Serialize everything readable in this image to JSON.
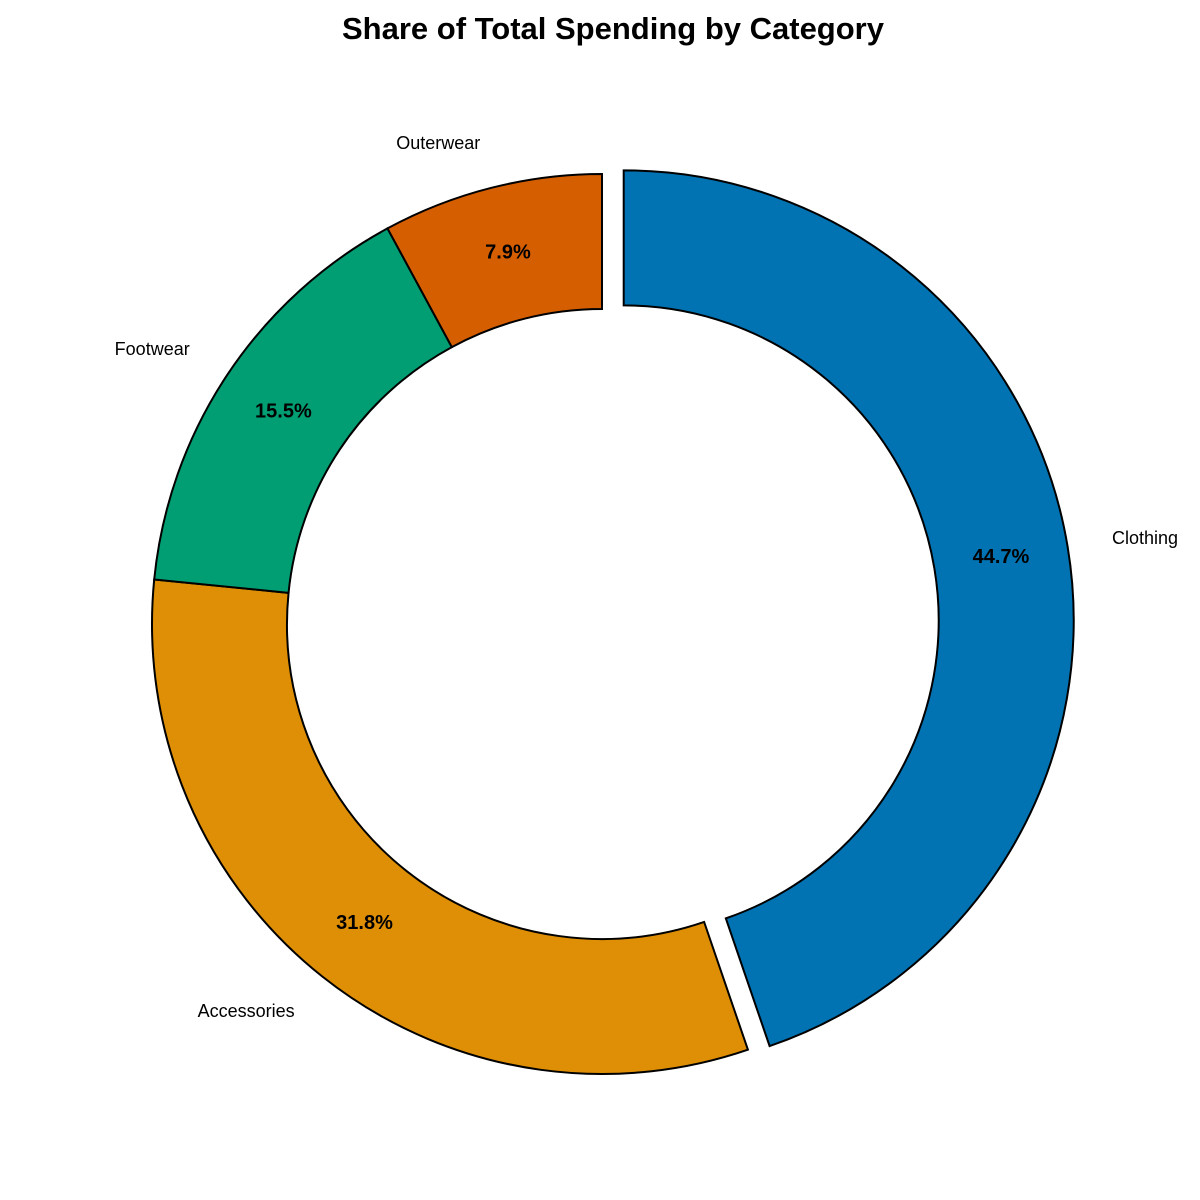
{
  "chart_data": {
    "type": "pie",
    "style": "donut",
    "title": "Share of Total Spending by Category",
    "slices": [
      {
        "label": "Clothing",
        "value": 44.7,
        "pct_label": "44.7%",
        "color": "#0173B2",
        "exploded": true
      },
      {
        "label": "Accessories",
        "value": 31.8,
        "pct_label": "31.8%",
        "color": "#DE8F05",
        "exploded": false
      },
      {
        "label": "Footwear",
        "value": 15.5,
        "pct_label": "15.5%",
        "color": "#029E73",
        "exploded": false
      },
      {
        "label": "Outerwear",
        "value": 7.9,
        "pct_label": "7.9%",
        "color": "#D55E00",
        "exploded": false
      }
    ],
    "start_angle_deg": 90,
    "direction": "clockwise",
    "edge_color": "#000000",
    "legend": "none"
  }
}
